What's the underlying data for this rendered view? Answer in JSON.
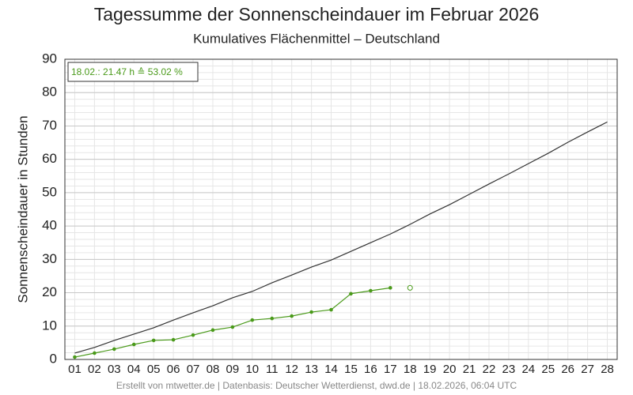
{
  "chart_data": {
    "type": "line",
    "title": "Tagessumme der Sonnenscheindauer im Februar 2026",
    "subtitle": "Kumulatives Flächenmittel – Deutschland",
    "y_label": "Sonnenscheindauer in Stunden",
    "annotation": "18.02.: 21.47 h ≙ 53.02 %",
    "footer": "Erstellt von mtwetter.de | Datenbasis: Deutscher Wetterdienst, dwd.de | 18.02.2026, 06:04 UTC",
    "categories": [
      "01",
      "02",
      "03",
      "04",
      "05",
      "06",
      "07",
      "08",
      "09",
      "10",
      "11",
      "12",
      "13",
      "14",
      "15",
      "16",
      "17",
      "18",
      "19",
      "20",
      "21",
      "22",
      "23",
      "24",
      "25",
      "26",
      "27",
      "28"
    ],
    "series": [
      {
        "color": "#333333",
        "marker": false,
        "line": true,
        "values": [
          1.9,
          3.6,
          5.7,
          7.6,
          9.5,
          11.8,
          14.0,
          16.1,
          18.5,
          20.4,
          23.0,
          25.3,
          27.7,
          29.8,
          32.4,
          35.0,
          37.6,
          40.5,
          43.6,
          46.4,
          49.5,
          52.6,
          55.6,
          58.7,
          61.8,
          65.1,
          68.2,
          71.2
        ]
      },
      {
        "color": "#4a9a1a",
        "marker": true,
        "line": true,
        "values": [
          0.7,
          1.9,
          3.1,
          4.5,
          5.7,
          5.9,
          7.3,
          8.8,
          9.7,
          11.8,
          12.3,
          13.0,
          14.2,
          14.9,
          19.7,
          20.6,
          21.47,
          null,
          null,
          null,
          null,
          null,
          null,
          null,
          null,
          null,
          null,
          null
        ]
      },
      {
        "color": "#4a9a1a",
        "marker": "open",
        "line": false,
        "values": [
          null,
          null,
          null,
          null,
          null,
          null,
          null,
          null,
          null,
          null,
          null,
          null,
          null,
          null,
          null,
          null,
          null,
          21.47,
          null,
          null,
          null,
          null,
          null,
          null,
          null,
          null,
          null,
          null
        ]
      }
    ],
    "ylim": [
      0,
      90
    ],
    "yticks": [
      0,
      10,
      20,
      30,
      40,
      50,
      60,
      70,
      80,
      90
    ],
    "grid": true
  }
}
